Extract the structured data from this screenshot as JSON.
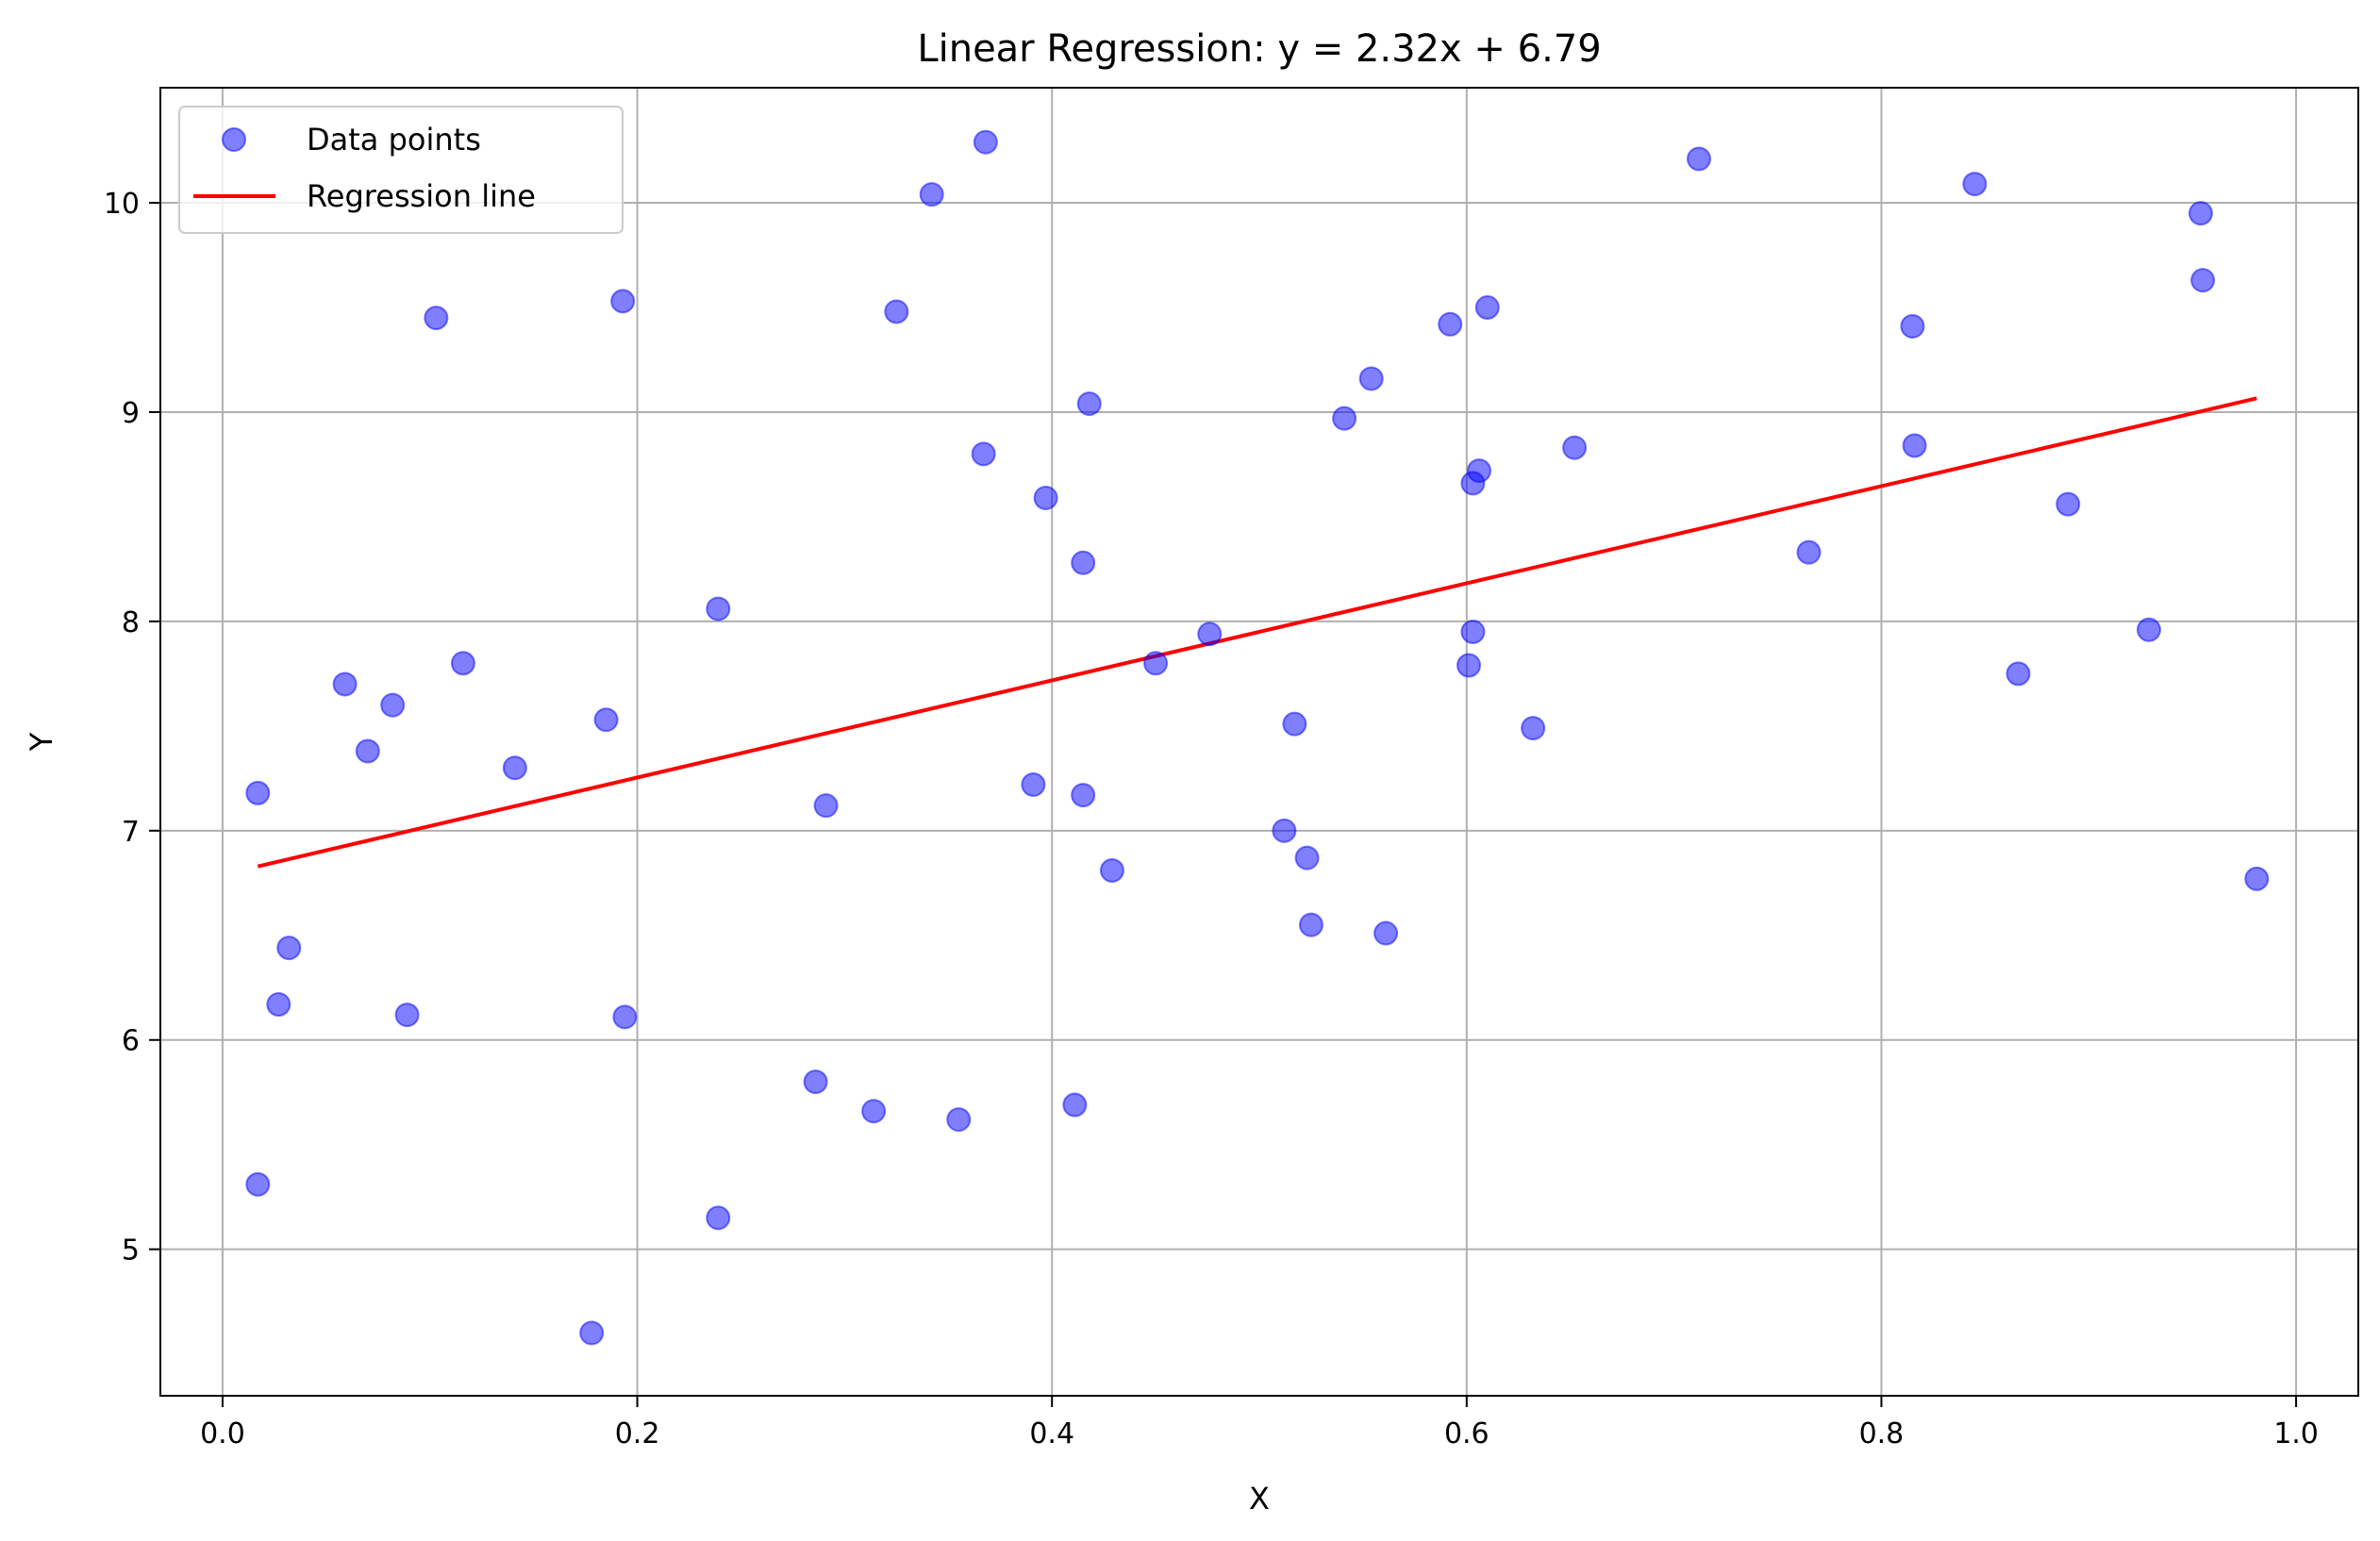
{
  "chart_data": {
    "type": "scatter",
    "title": "Linear Regression: y = 2.32x + 6.79",
    "xlabel": "X",
    "ylabel": "Y",
    "xlim": [
      -0.03,
      1.03
    ],
    "ylim": [
      4.3,
      10.55
    ],
    "xticks": [
      0.0,
      0.2,
      0.4,
      0.6,
      0.8,
      1.0
    ],
    "xtick_labels": [
      "0.0",
      "0.2",
      "0.4",
      "0.6",
      "0.8",
      "1.0"
    ],
    "yticks": [
      5,
      6,
      7,
      8,
      9,
      10
    ],
    "ytick_labels": [
      "5",
      "6",
      "7",
      "8",
      "9",
      "10"
    ],
    "grid": true,
    "legend_position": "top-left",
    "series": [
      {
        "name": "Data points",
        "kind": "scatter",
        "color": "#0000ff",
        "alpha": 0.5,
        "points": [
          [
            0.017,
            7.18
          ],
          [
            0.017,
            5.31
          ],
          [
            0.027,
            6.17
          ],
          [
            0.032,
            6.44
          ],
          [
            0.059,
            7.7
          ],
          [
            0.07,
            7.38
          ],
          [
            0.082,
            7.6
          ],
          [
            0.089,
            6.12
          ],
          [
            0.103,
            9.45
          ],
          [
            0.116,
            7.8
          ],
          [
            0.141,
            7.3
          ],
          [
            0.178,
            4.6
          ],
          [
            0.185,
            7.53
          ],
          [
            0.193,
            9.53
          ],
          [
            0.194,
            6.11
          ],
          [
            0.239,
            8.06
          ],
          [
            0.239,
            5.15
          ],
          [
            0.286,
            5.8
          ],
          [
            0.291,
            7.12
          ],
          [
            0.314,
            5.66
          ],
          [
            0.325,
            9.48
          ],
          [
            0.342,
            10.04
          ],
          [
            0.355,
            5.62
          ],
          [
            0.367,
            8.8
          ],
          [
            0.368,
            10.29
          ],
          [
            0.391,
            7.22
          ],
          [
            0.397,
            8.59
          ],
          [
            0.411,
            5.69
          ],
          [
            0.415,
            8.28
          ],
          [
            0.415,
            7.17
          ],
          [
            0.418,
            9.04
          ],
          [
            0.429,
            6.81
          ],
          [
            0.45,
            7.8
          ],
          [
            0.476,
            7.94
          ],
          [
            0.512,
            7.0
          ],
          [
            0.517,
            7.51
          ],
          [
            0.523,
            6.87
          ],
          [
            0.525,
            6.55
          ],
          [
            0.541,
            8.97
          ],
          [
            0.554,
            9.16
          ],
          [
            0.561,
            6.51
          ],
          [
            0.592,
            9.42
          ],
          [
            0.601,
            7.79
          ],
          [
            0.603,
            7.95
          ],
          [
            0.603,
            8.66
          ],
          [
            0.606,
            8.72
          ],
          [
            0.61,
            9.5
          ],
          [
            0.632,
            7.49
          ],
          [
            0.652,
            8.83
          ],
          [
            0.712,
            10.21
          ],
          [
            0.765,
            8.33
          ],
          [
            0.815,
            9.41
          ],
          [
            0.816,
            8.84
          ],
          [
            0.845,
            10.09
          ],
          [
            0.866,
            7.75
          ],
          [
            0.89,
            8.56
          ],
          [
            0.929,
            7.96
          ],
          [
            0.954,
            9.95
          ],
          [
            0.955,
            9.63
          ],
          [
            0.981,
            6.77
          ]
        ]
      },
      {
        "name": "Regression line",
        "kind": "line",
        "color": "#ff0000",
        "slope": 2.32,
        "intercept": 6.79,
        "x_range": [
          0.017,
          0.981
        ]
      }
    ]
  }
}
